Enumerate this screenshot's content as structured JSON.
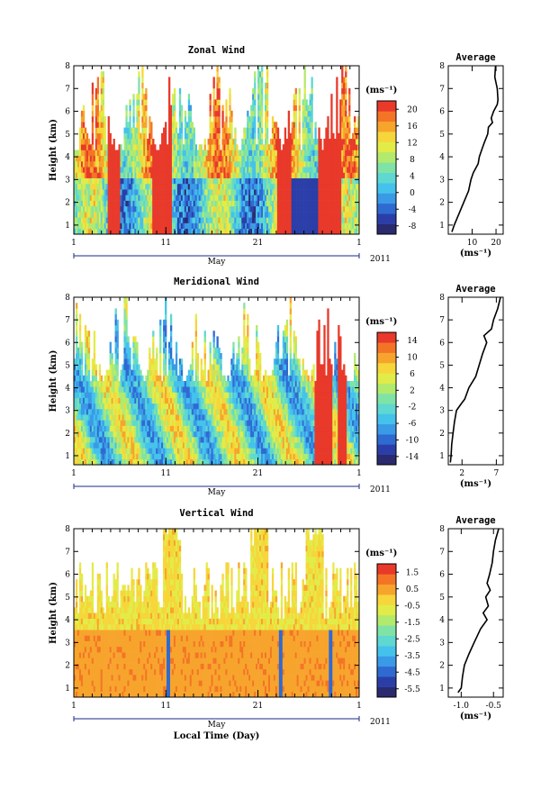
{
  "chart_data": [
    {
      "type": "heatmap",
      "title": "Zonal Wind",
      "ylabel": "Height (km)",
      "ylim": [
        0.6,
        8
      ],
      "yticks": [
        "1",
        "2",
        "3",
        "4",
        "5",
        "6",
        "7",
        "8"
      ],
      "xticks": [
        "1",
        "11",
        "21",
        "1"
      ],
      "month_label": "May",
      "year_label": "2011",
      "unit_label": "(ms⁻¹)",
      "colorbar_ticks": [
        "20",
        "16",
        "12",
        "8",
        "4",
        "0",
        "-4",
        "-8"
      ],
      "clim": [
        -10,
        22
      ],
      "palette": [
        "#2a2a6e",
        "#2b3ea8",
        "#2f6ad1",
        "#3a9ae6",
        "#44c2ec",
        "#5ed8d0",
        "#7fe3a6",
        "#b2ea6d",
        "#e2ec48",
        "#f6d63a",
        "#f7a42d",
        "#f47426",
        "#e8392a"
      ],
      "avg_profile": {
        "title": "Average",
        "xticks": [
          "10",
          "20"
        ],
        "xlim": [
          0,
          23
        ],
        "xlabel": "(ms⁻¹)",
        "heights": [
          0.7,
          1.0,
          1.5,
          2.0,
          2.5,
          3.0,
          3.3,
          3.5,
          3.7,
          4.0,
          4.3,
          4.6,
          5.0,
          5.3,
          5.5,
          5.7,
          6.0,
          6.3,
          6.5,
          7.0,
          7.5,
          8.0
        ],
        "values": [
          1.5,
          2.5,
          4.5,
          6.5,
          8.5,
          9.5,
          10.5,
          11.5,
          12.5,
          13.0,
          14.0,
          15.0,
          16.5,
          16.8,
          18.5,
          18.0,
          19.0,
          20.5,
          20.8,
          20.5,
          19.5,
          19.8
        ]
      }
    },
    {
      "type": "heatmap",
      "title": "Meridional Wind",
      "ylabel": "Height (km)",
      "ylim": [
        0.6,
        8
      ],
      "yticks": [
        "1",
        "2",
        "3",
        "4",
        "5",
        "6",
        "7",
        "8"
      ],
      "xticks": [
        "1",
        "11",
        "21",
        "1"
      ],
      "month_label": "May",
      "year_label": "2011",
      "unit_label": "(ms⁻¹)",
      "colorbar_ticks": [
        "14",
        "10",
        "6",
        "2",
        "-2",
        "-6",
        "-10",
        "-14"
      ],
      "clim": [
        -16,
        16
      ],
      "palette": [
        "#2a2a6e",
        "#2b3ea8",
        "#2f6ad1",
        "#3a9ae6",
        "#44c2ec",
        "#5ed8d0",
        "#7fe3a6",
        "#b2ea6d",
        "#e2ec48",
        "#f6d63a",
        "#f7a42d",
        "#f47426",
        "#e8392a"
      ],
      "avg_profile": {
        "title": "Average",
        "xticks": [
          "2",
          "7"
        ],
        "xlim": [
          0,
          8
        ],
        "xlabel": "(ms⁻¹)",
        "heights": [
          0.7,
          1.0,
          1.5,
          2.0,
          2.5,
          3.0,
          3.3,
          3.5,
          4.0,
          4.5,
          5.0,
          5.5,
          6.0,
          6.3,
          6.6,
          7.0,
          7.5,
          8.0
        ],
        "values": [
          0.3,
          0.4,
          0.5,
          0.7,
          0.9,
          1.2,
          1.9,
          2.4,
          3.0,
          4.0,
          4.5,
          5.0,
          5.6,
          5.2,
          6.3,
          6.6,
          7.2,
          7.6
        ]
      }
    },
    {
      "type": "heatmap",
      "title": "Vertical Wind",
      "ylabel": "Height (km)",
      "xlabel": "Local Time (Day)",
      "ylim": [
        0.6,
        8
      ],
      "yticks": [
        "1",
        "2",
        "3",
        "4",
        "5",
        "6",
        "7",
        "8"
      ],
      "xticks": [
        "1",
        "11",
        "21",
        "1"
      ],
      "month_label": "May",
      "year_label": "2011",
      "unit_label": "(ms⁻¹)",
      "colorbar_ticks": [
        "1.5",
        "0.5",
        "-0.5",
        "-1.5",
        "-2.5",
        "-3.5",
        "-4.5",
        "-5.5"
      ],
      "clim": [
        -6,
        2
      ],
      "palette": [
        "#2a2a6e",
        "#2b3ea8",
        "#2f6ad1",
        "#3a9ae6",
        "#44c2ec",
        "#5ed8d0",
        "#7fe3a6",
        "#b2ea6d",
        "#e2ec48",
        "#f6d63a",
        "#f7a42d",
        "#f47426",
        "#e8392a"
      ],
      "avg_profile": {
        "title": "Average",
        "xticks": [
          "-1.0",
          "-0.5"
        ],
        "xlim": [
          -1.2,
          -0.35
        ],
        "xlabel": "(ms⁻¹)",
        "heights": [
          0.8,
          1.0,
          1.5,
          2.0,
          2.5,
          3.0,
          3.3,
          3.6,
          4.0,
          4.3,
          4.6,
          5.0,
          5.3,
          5.6,
          6.0,
          6.5,
          7.0,
          7.5,
          8.0
        ],
        "values": [
          -1.05,
          -1.0,
          -0.98,
          -0.95,
          -0.88,
          -0.8,
          -0.75,
          -0.7,
          -0.6,
          -0.66,
          -0.58,
          -0.62,
          -0.55,
          -0.6,
          -0.56,
          -0.52,
          -0.5,
          -0.47,
          -0.42
        ]
      }
    }
  ]
}
